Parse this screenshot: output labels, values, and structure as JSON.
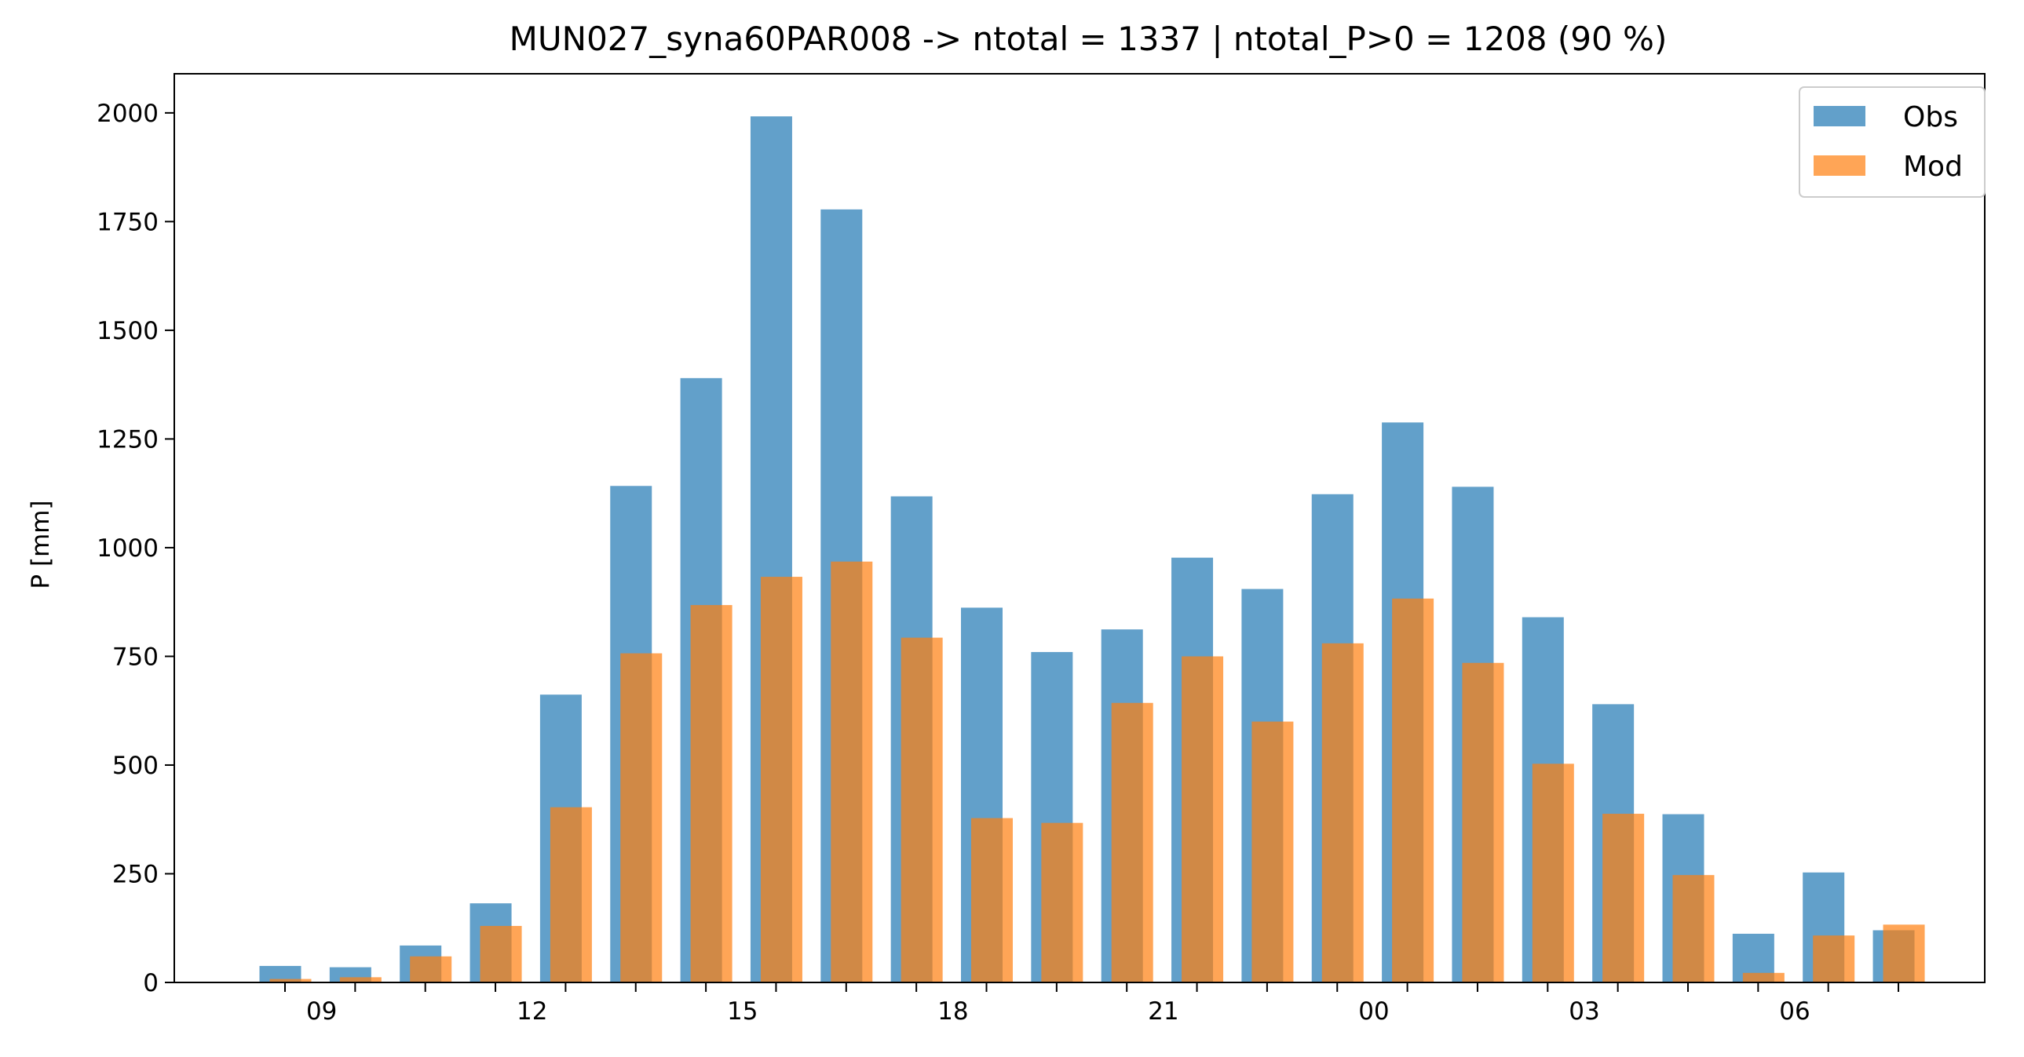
{
  "chart_data": {
    "type": "bar",
    "title": "MUN027_syna60PAR008 -> ntotal = 1337 | ntotal_P>0 = 1208 (90 %)",
    "xlabel": "",
    "ylabel": "P [mm]",
    "ylim": [
      0,
      2090
    ],
    "yticks": [
      0,
      250,
      500,
      750,
      1000,
      1250,
      1500,
      1750,
      2000
    ],
    "hours": [
      8,
      9,
      10,
      11,
      12,
      13,
      14,
      15,
      16,
      17,
      18,
      19,
      20,
      21,
      22,
      23,
      0,
      1,
      2,
      3,
      4,
      5,
      6,
      7
    ],
    "xtick_labels": [
      "09",
      "12",
      "15",
      "18",
      "21",
      "00",
      "03",
      "06"
    ],
    "grid": false,
    "legend_position": "top-right",
    "series": [
      {
        "name": "Obs",
        "color": "#1f77b4",
        "values": [
          38,
          35,
          85,
          182,
          662,
          1142,
          1390,
          1992,
          1778,
          1118,
          862,
          760,
          812,
          977,
          905,
          1123,
          1288,
          1140,
          840,
          640,
          387,
          112,
          253,
          120
        ]
      },
      {
        "name": "Mod",
        "color": "#ff7f0e",
        "values": [
          8,
          12,
          60,
          130,
          403,
          757,
          868,
          933,
          968,
          793,
          378,
          367,
          643,
          750,
          600,
          780,
          883,
          735,
          503,
          388,
          247,
          22,
          108,
          133
        ]
      }
    ]
  }
}
